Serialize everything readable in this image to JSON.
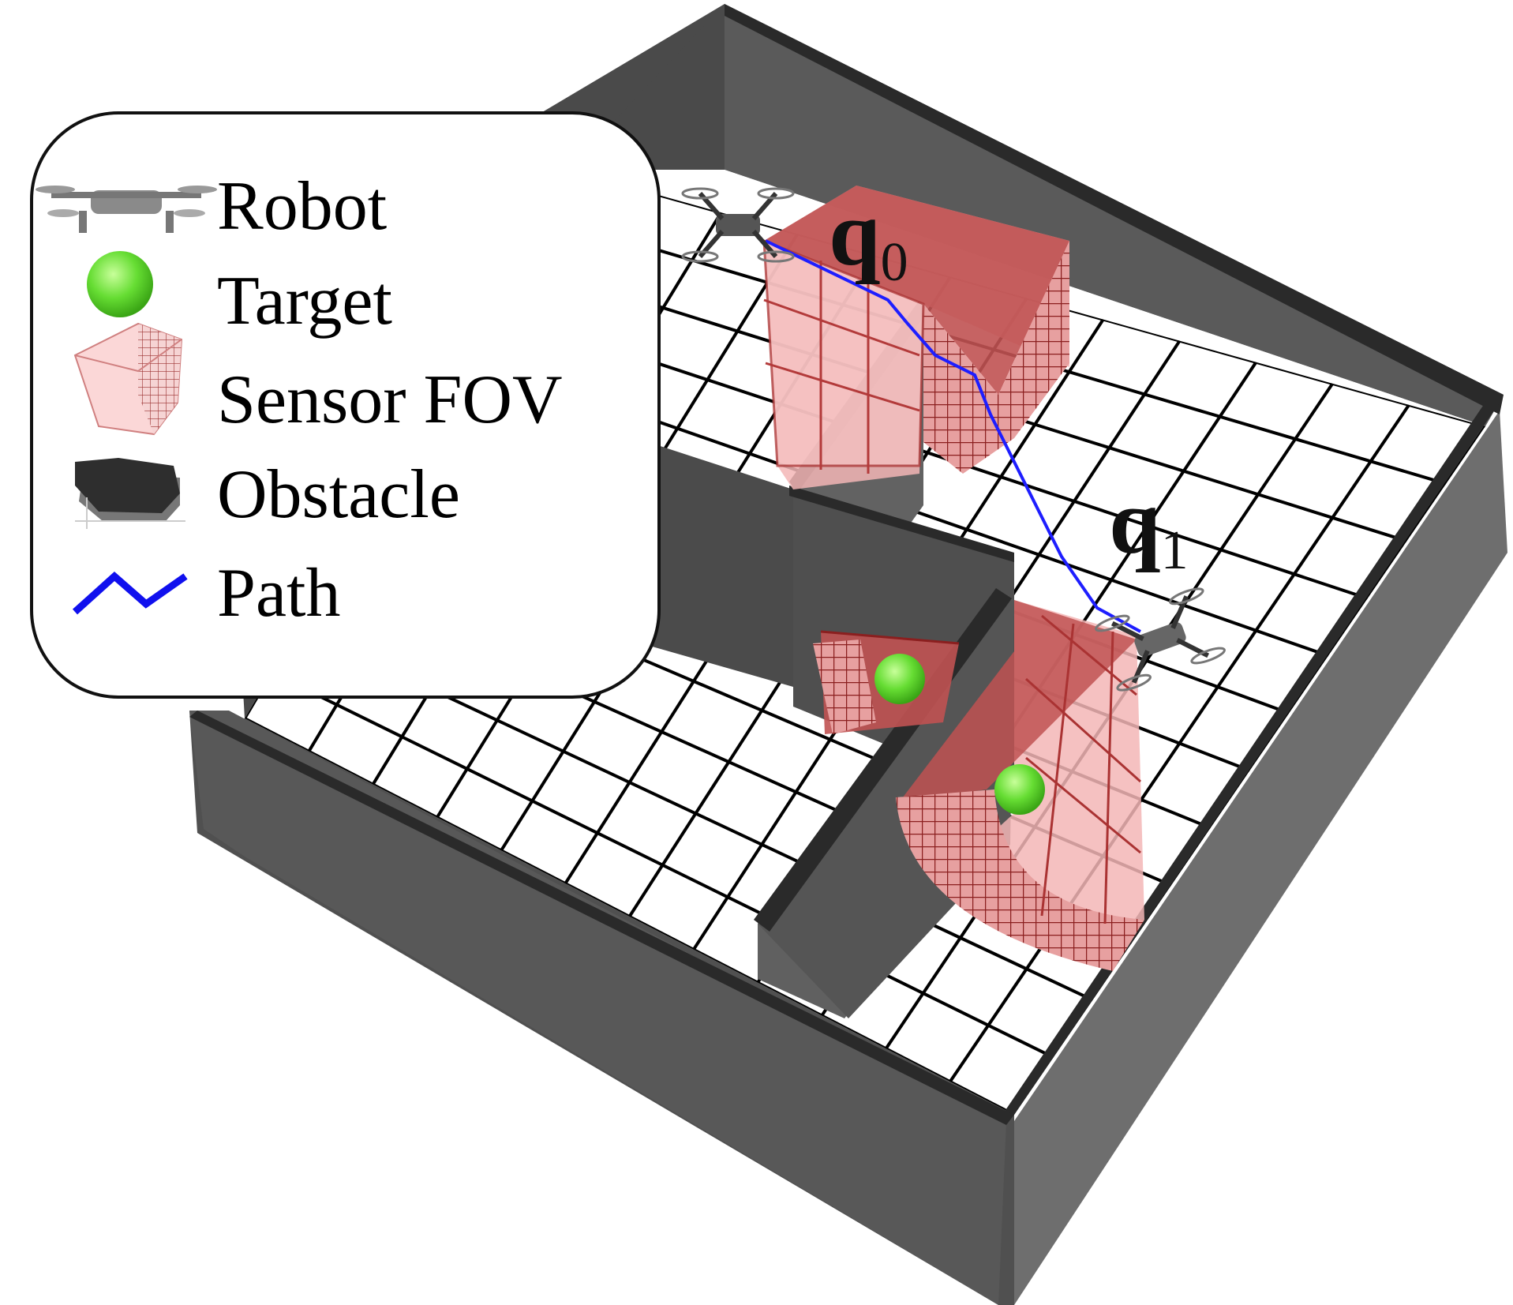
{
  "legend": {
    "items": [
      {
        "label": "Robot",
        "icon": "drone-icon"
      },
      {
        "label": "Target",
        "icon": "green-sphere-icon"
      },
      {
        "label": "Sensor FOV",
        "icon": "sensor-fov-icon"
      },
      {
        "label": "Obstacle",
        "icon": "obstacle-icon"
      },
      {
        "label": "Path",
        "icon": "path-line-icon"
      }
    ]
  },
  "configs": {
    "q0": {
      "symbol": "q",
      "subscript": "0"
    },
    "q1": {
      "symbol": "q",
      "subscript": "1"
    }
  },
  "colors": {
    "wall": "#5c5c5c",
    "wall_dark": "#3f3f3f",
    "wall_top": "#2a2a2a",
    "floor": "#ffffff",
    "grid": "#000000",
    "fov_fill": "#e88a8a",
    "fov_dark": "#b04545",
    "fov_line": "#8b1f1f",
    "target": "#66dd33",
    "path": "#1515ff"
  }
}
